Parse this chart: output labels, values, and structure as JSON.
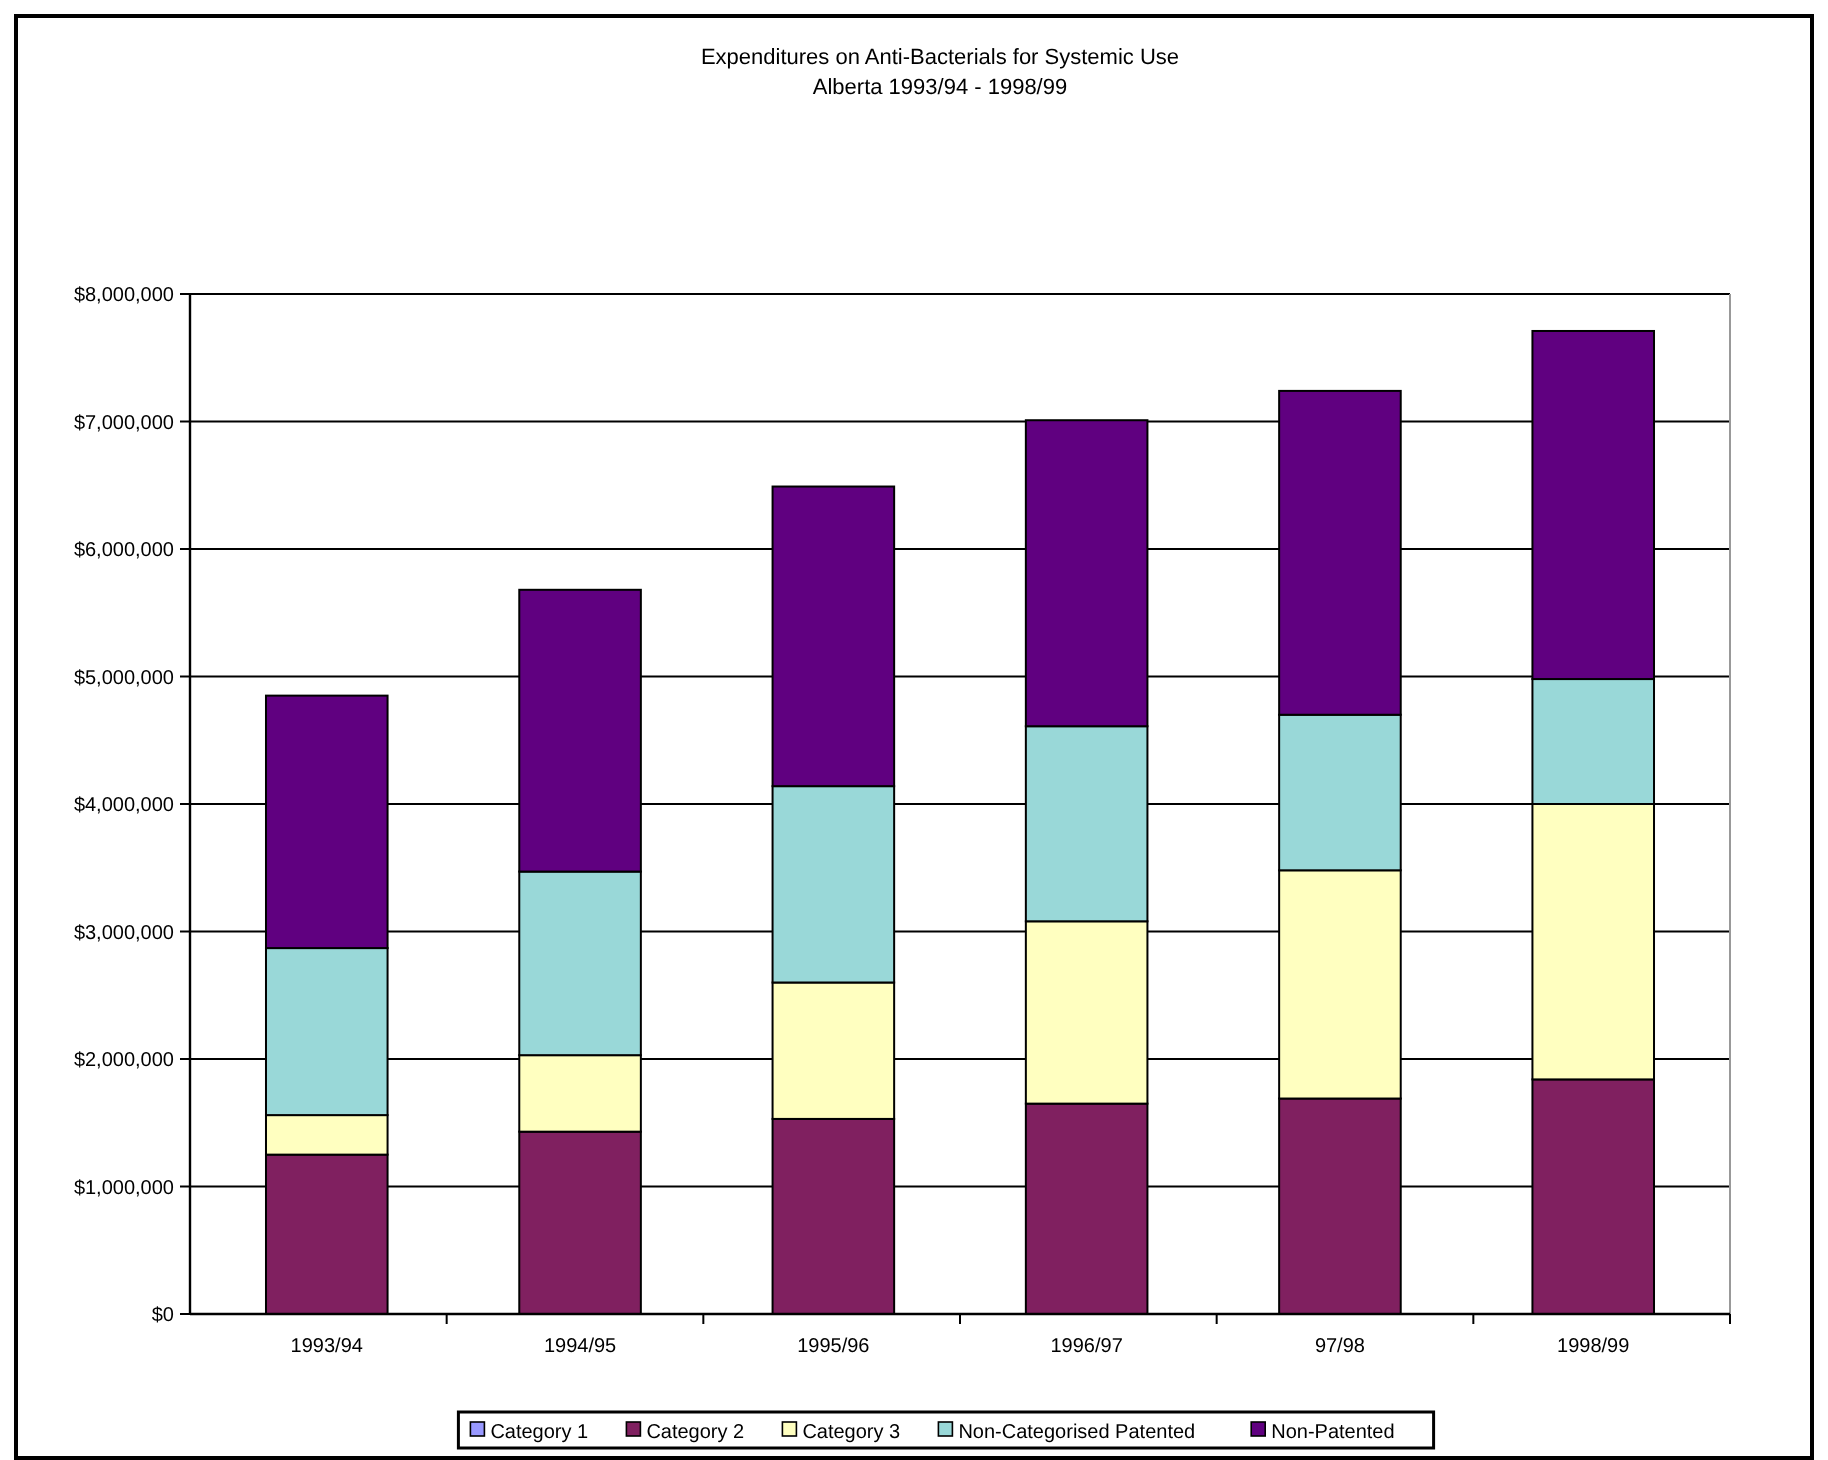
{
  "chart_data": {
    "type": "bar",
    "title": "Expenditures on Anti-Bacterials for Systemic Use",
    "subtitle": "Alberta 1993/94 - 1998/99",
    "categories": [
      "1993/94",
      "1994/95",
      "1995/96",
      "1996/97",
      "97/98",
      "1998/99"
    ],
    "series": [
      {
        "name": "Category 1",
        "color": "#9999ff",
        "values": [
          0,
          0,
          0,
          0,
          0,
          0
        ]
      },
      {
        "name": "Category 2",
        "color": "#802060",
        "values": [
          1250000,
          1430000,
          1530000,
          1650000,
          1690000,
          1840000
        ]
      },
      {
        "name": "Category 3",
        "color": "#ffffc0",
        "values": [
          310000,
          600000,
          1070000,
          1430000,
          1790000,
          2160000
        ]
      },
      {
        "name": "Non-Categorised Patented",
        "color": "#99d8d8",
        "values": [
          1310000,
          1440000,
          1540000,
          1530000,
          1220000,
          980000
        ]
      },
      {
        "name": "Non-Patented",
        "color": "#600080",
        "values": [
          1980000,
          2210000,
          2350000,
          2400000,
          2540000,
          2730000
        ]
      }
    ],
    "stacked": true,
    "ylim": [
      0,
      8000000
    ],
    "yticks": [
      {
        "value": 0,
        "label": "$0"
      },
      {
        "value": 1000000,
        "label": "$1,000,000"
      },
      {
        "value": 2000000,
        "label": "$2,000,000"
      },
      {
        "value": 3000000,
        "label": "$3,000,000"
      },
      {
        "value": 4000000,
        "label": "$4,000,000"
      },
      {
        "value": 5000000,
        "label": "$5,000,000"
      },
      {
        "value": 6000000,
        "label": "$6,000,000"
      },
      {
        "value": 7000000,
        "label": "$7,000,000"
      },
      {
        "value": 8000000,
        "label": "$8,000,000"
      }
    ],
    "grid": "y",
    "legend": "bottom"
  }
}
